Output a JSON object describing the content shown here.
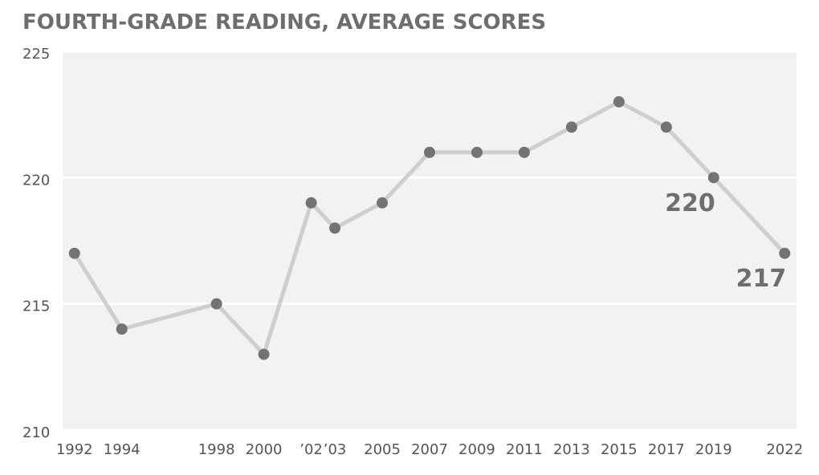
{
  "chart_data": {
    "type": "line",
    "title": "FOURTH-GRADE READING, AVERAGE SCORES",
    "x": [
      1992,
      1994,
      1998,
      2000,
      2002,
      2003,
      2005,
      2007,
      2009,
      2011,
      2013,
      2015,
      2017,
      2019,
      2022
    ],
    "values": [
      217,
      214,
      215,
      213,
      219,
      218,
      219,
      221,
      221,
      221,
      222,
      223,
      222,
      220,
      217
    ],
    "value_labels": [
      null,
      null,
      null,
      null,
      null,
      null,
      null,
      null,
      null,
      null,
      null,
      null,
      null,
      "220",
      "217"
    ],
    "line_color": "#cfcecc",
    "marker_color": "#737373",
    "xlim": [
      1991.5,
      2022.5
    ],
    "xticks": [
      1992,
      1994,
      1998,
      2000,
      {
        "value": 2002,
        "label": "’02"
      },
      {
        "value": 2003,
        "label": "’03"
      },
      2005,
      2007,
      2009,
      2011,
      2013,
      2015,
      2017,
      2019,
      2022
    ],
    "ylim": [
      210,
      225
    ],
    "yticks": [
      210,
      215,
      220,
      225
    ],
    "grid": true
  }
}
